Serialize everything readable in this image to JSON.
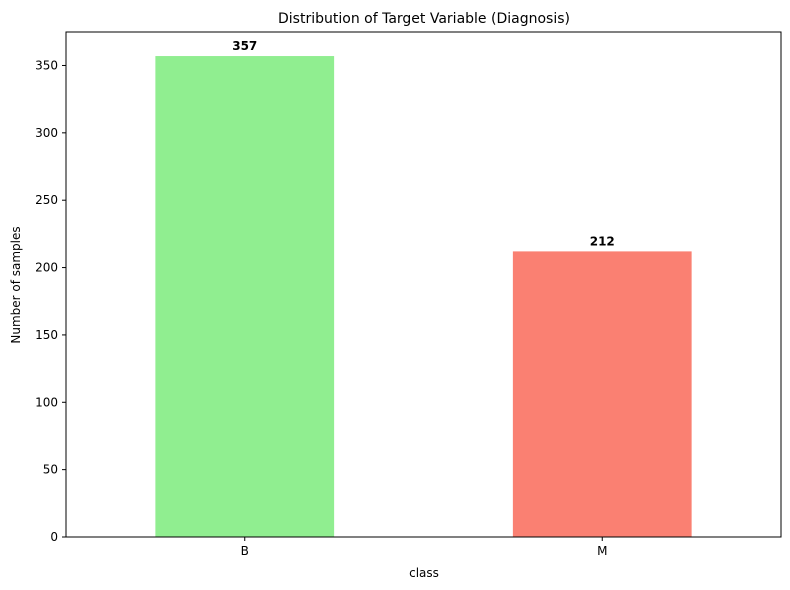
{
  "chart_data": {
    "type": "bar",
    "title": "Distribution of Target Variable (Diagnosis)",
    "xlabel": "class",
    "ylabel": "Number of samples",
    "categories": [
      "B",
      "M"
    ],
    "values": [
      357,
      212
    ],
    "bar_labels": [
      "357",
      "212"
    ],
    "colors": [
      "#90ee90",
      "#fa8072"
    ],
    "ylim": [
      0,
      374.85
    ],
    "yticks": [
      0,
      50,
      100,
      150,
      200,
      250,
      300,
      350
    ],
    "grid": false,
    "legend": "none"
  }
}
